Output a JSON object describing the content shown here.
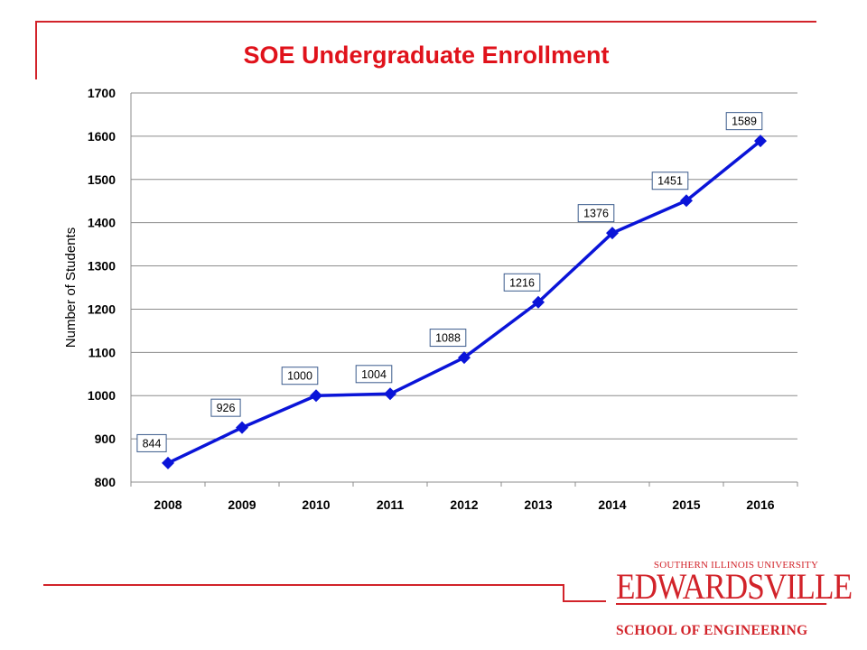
{
  "colors": {
    "accent": "#d2232a",
    "series": "#0a14d8"
  },
  "logo": {
    "top_text": "SOUTHERN ILLINOIS UNIVERSITY",
    "main_text": "EDWARDSVILLE",
    "sub_text": "SCHOOL OF ENGINEERING"
  },
  "chart_data": {
    "type": "line",
    "title": "SOE Undergraduate Enrollment",
    "xlabel": "",
    "ylabel": "Number of Students",
    "categories": [
      "2008",
      "2009",
      "2010",
      "2011",
      "2012",
      "2013",
      "2014",
      "2015",
      "2016"
    ],
    "values": [
      844,
      926,
      1000,
      1004,
      1088,
      1216,
      1376,
      1451,
      1589
    ],
    "ylim": [
      800,
      1700
    ],
    "yticks": [
      800,
      900,
      1000,
      1100,
      1200,
      1300,
      1400,
      1500,
      1600,
      1700
    ],
    "grid": true,
    "legend": "none",
    "data_labels": true,
    "marker": "diamond"
  }
}
